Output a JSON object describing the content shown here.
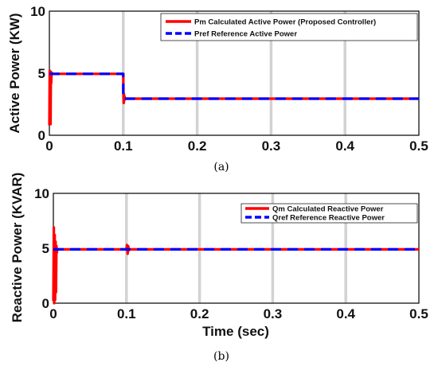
{
  "chart_data": [
    {
      "type": "line",
      "panel": "a",
      "caption": "(a)",
      "title": "",
      "xlabel": "",
      "ylabel": "Active Power (KW)",
      "xlim": [
        0,
        0.5
      ],
      "ylim": [
        0,
        10
      ],
      "xticks": [
        0,
        0.1,
        0.2,
        0.3,
        0.4,
        0.5
      ],
      "xtick_labels": [
        "0",
        "0.1",
        "0.2",
        "0.3",
        "0.4",
        "0.5"
      ],
      "yticks": [
        0,
        5,
        10
      ],
      "ytick_labels": [
        "0",
        "5",
        "10"
      ],
      "grid": "x",
      "legend_position": "top-right",
      "series": [
        {
          "name": "Pm Calculated Active Power (Proposed Controller)",
          "color": "#ff0000",
          "style": "solid",
          "x": [
            0,
            0.0004,
            0.0008,
            0.0012,
            0.0016,
            0.002,
            0.0025,
            0.003,
            0.004,
            0.006,
            0.1,
            0.1002,
            0.1006,
            0.101,
            0.1014,
            0.1018,
            0.1022,
            0.103,
            0.105,
            0.5
          ],
          "y": [
            0.8,
            5.2,
            2.0,
            4.6,
            0.9,
            5.1,
            4.2,
            5.05,
            4.95,
            4.95,
            4.95,
            3.4,
            2.6,
            3.3,
            2.8,
            3.1,
            2.95,
            2.95,
            2.95,
            2.95
          ]
        },
        {
          "name": "Pref Reference Active Power",
          "color": "#0000ff",
          "style": "dashed",
          "x": [
            0,
            0.1,
            0.1,
            0.5
          ],
          "y": [
            4.95,
            4.95,
            2.95,
            2.95
          ]
        }
      ]
    },
    {
      "type": "line",
      "panel": "b",
      "caption": "(b)",
      "title": "",
      "xlabel": "Time (sec)",
      "ylabel": "Reactive Power (KVAR)",
      "xlim": [
        0,
        0.5
      ],
      "ylim": [
        0,
        10
      ],
      "xticks": [
        0,
        0.1,
        0.2,
        0.3,
        0.4,
        0.5
      ],
      "xtick_labels": [
        "0",
        "0.1",
        "0.2",
        "0.3",
        "0.4",
        "0.5"
      ],
      "yticks": [
        0,
        5,
        10
      ],
      "ytick_labels": [
        "0",
        "5",
        "10"
      ],
      "grid": "x",
      "legend_position": "top-right",
      "series": [
        {
          "name": "Qm Calculated Reactive Power",
          "color": "#ff0000",
          "style": "solid",
          "x": [
            0,
            0.0006,
            0.0012,
            0.0018,
            0.0024,
            0.003,
            0.0036,
            0.0042,
            0.0048,
            0.0055,
            0.007,
            0.1,
            0.1008,
            0.1016,
            0.1024,
            0.1032,
            0.104,
            0.5
          ],
          "y": [
            0.2,
            6.9,
            0.0,
            6.2,
            0.3,
            5.6,
            1.0,
            5.2,
            4.6,
            4.9,
            4.9,
            4.9,
            5.3,
            4.5,
            5.2,
            4.8,
            4.9,
            4.9
          ]
        },
        {
          "name": "Qref Reference Reactive Power",
          "color": "#0000ff",
          "style": "dashed",
          "x": [
            0,
            0.5
          ],
          "y": [
            4.9,
            4.9
          ]
        }
      ]
    }
  ]
}
